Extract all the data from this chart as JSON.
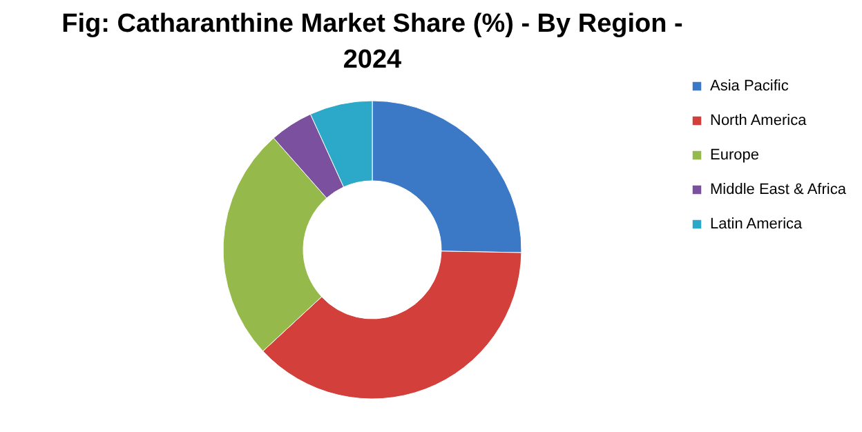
{
  "chart_data": {
    "type": "donut",
    "title": "Fig: Catharanthine Market Share (%) - By Region - 2024",
    "categories": [
      "Asia Pacific",
      "North America",
      "Europe",
      "Middle East & Africa",
      "Latin America"
    ],
    "values": [
      25.3,
      37.8,
      25.4,
      4.7,
      6.8
    ],
    "colors": [
      "#3b78c5",
      "#d3403b",
      "#96b94b",
      "#7b509f",
      "#2ca9c9"
    ],
    "legend": "right"
  }
}
